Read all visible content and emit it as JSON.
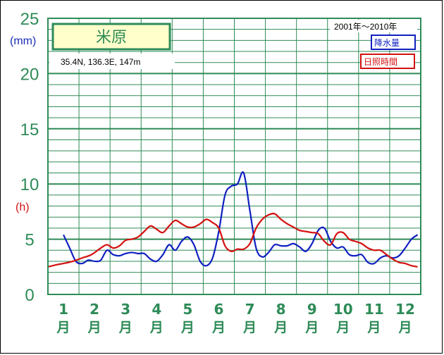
{
  "chart_data": {
    "type": "line",
    "station": "米原",
    "coords_text": "35.4N,  136.3E,  147m",
    "period_label": "2001年～2010年",
    "y_unit_precip": "(mm)",
    "y_unit_sun": "(h)",
    "y_ticks": [
      "0",
      "5",
      "10",
      "15",
      "20",
      "25"
    ],
    "ylim": [
      0,
      25
    ],
    "months": [
      "1",
      "2",
      "3",
      "4",
      "5",
      "6",
      "7",
      "8",
      "9",
      "10",
      "11",
      "12"
    ],
    "month_suffix": "月",
    "legend": {
      "precip": "降水量",
      "sun": "日照時間"
    },
    "colors": {
      "grid": "#2e8b57",
      "precip": "#1020c0",
      "sun": "#d41010",
      "station_box": "#2e8b57",
      "station_fill": "#ffffcc"
    },
    "series": [
      {
        "name": "降水量",
        "x": [
          1.0,
          1.2,
          1.4,
          1.6,
          1.8,
          2.0,
          2.2,
          2.4,
          2.6,
          2.8,
          3.0,
          3.2,
          3.4,
          3.6,
          3.8,
          4.0,
          4.2,
          4.4,
          4.6,
          4.8,
          5.0,
          5.2,
          5.4,
          5.6,
          5.8,
          6.0,
          6.2,
          6.4,
          6.6,
          6.8,
          7.0,
          7.2,
          7.4,
          7.6,
          7.8,
          8.0,
          8.2,
          8.4,
          8.6,
          8.8,
          9.0,
          9.2,
          9.4,
          9.6,
          9.8,
          10.0,
          10.2,
          10.4,
          10.6,
          10.8,
          11.0,
          11.2,
          11.4,
          11.6,
          11.8,
          12.0,
          12.2,
          12.4
        ],
        "values": [
          5.4,
          4.2,
          3.0,
          2.8,
          3.1,
          3.0,
          3.1,
          4.0,
          3.6,
          3.5,
          3.7,
          3.8,
          3.7,
          3.7,
          3.2,
          3.0,
          3.6,
          4.5,
          4.0,
          4.8,
          5.2,
          4.5,
          3.0,
          2.6,
          3.3,
          5.7,
          9.0,
          9.8,
          10.0,
          11.0,
          7.6,
          4.2,
          3.4,
          3.8,
          4.5,
          4.4,
          4.4,
          4.6,
          4.3,
          3.9,
          4.6,
          5.8,
          6.0,
          4.8,
          4.2,
          4.3,
          3.6,
          3.5,
          3.6,
          2.9,
          2.8,
          3.3,
          3.5,
          3.3,
          3.5,
          4.2,
          5.0,
          5.4
        ]
      },
      {
        "name": "日照時間",
        "x": [
          0.5,
          0.8,
          1.0,
          1.3,
          1.6,
          1.9,
          2.2,
          2.4,
          2.6,
          2.8,
          3.0,
          3.2,
          3.4,
          3.6,
          3.8,
          4.0,
          4.2,
          4.4,
          4.6,
          4.8,
          5.0,
          5.2,
          5.4,
          5.6,
          5.8,
          6.0,
          6.2,
          6.4,
          6.6,
          6.8,
          7.0,
          7.2,
          7.4,
          7.6,
          7.8,
          8.0,
          8.2,
          8.4,
          8.6,
          8.8,
          9.0,
          9.2,
          9.4,
          9.6,
          9.8,
          10.0,
          10.2,
          10.4,
          10.6,
          10.8,
          11.0,
          11.2,
          11.4,
          11.6,
          11.8,
          12.0,
          12.2,
          12.4
        ],
        "values": [
          2.5,
          2.7,
          2.8,
          3.0,
          3.3,
          3.6,
          4.2,
          4.5,
          4.2,
          4.4,
          4.9,
          5.0,
          5.2,
          5.7,
          6.2,
          5.9,
          5.6,
          6.2,
          6.7,
          6.4,
          6.1,
          6.1,
          6.4,
          6.8,
          6.5,
          6.0,
          4.4,
          3.9,
          4.1,
          4.1,
          4.6,
          6.0,
          6.8,
          7.2,
          7.3,
          6.8,
          6.4,
          6.1,
          5.8,
          5.7,
          5.6,
          5.5,
          4.8,
          4.5,
          5.5,
          5.6,
          5.0,
          4.8,
          4.6,
          4.2,
          4.0,
          4.0,
          3.6,
          3.2,
          2.9,
          2.8,
          2.6,
          2.5
        ]
      }
    ]
  }
}
